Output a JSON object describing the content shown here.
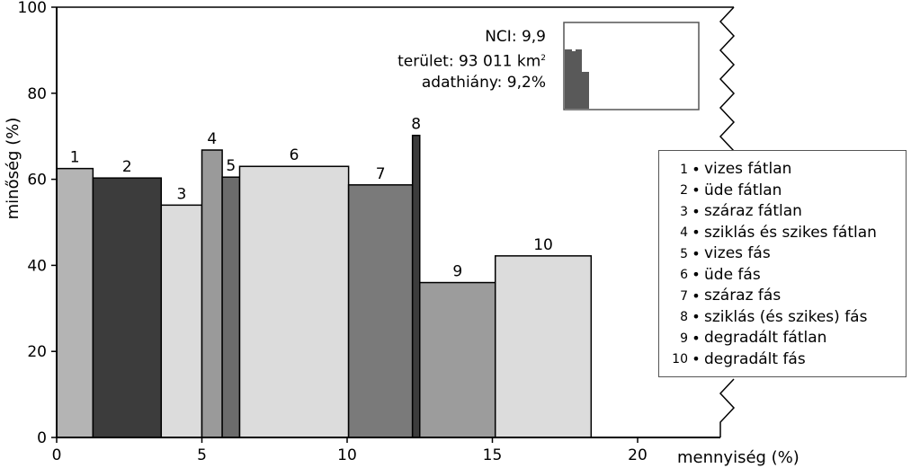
{
  "chart_data": {
    "type": "bar",
    "subtype": "variable-width bars (Marimekko)",
    "xlabel": "mennyiség (%)",
    "ylabel": "minőség (%)",
    "xlim": [
      0,
      20
    ],
    "ylim": [
      0,
      100
    ],
    "xticks": [
      0,
      5,
      10,
      15,
      20
    ],
    "yticks": [
      0,
      20,
      40,
      60,
      80,
      100
    ],
    "bars": [
      {
        "id": "1",
        "x_start": 0.0,
        "x_end": 1.25,
        "value": 62.5,
        "color": "#b4b4b4"
      },
      {
        "id": "2",
        "x_start": 1.25,
        "x_end": 3.6,
        "value": 60.3,
        "color": "#3c3c3c"
      },
      {
        "id": "3",
        "x_start": 3.6,
        "x_end": 5.0,
        "value": 54.0,
        "color": "#dcdcdc"
      },
      {
        "id": "4",
        "x_start": 5.0,
        "x_end": 5.7,
        "value": 66.8,
        "color": "#9a9a9a"
      },
      {
        "id": "5",
        "x_start": 5.7,
        "x_end": 6.3,
        "value": 60.5,
        "color": "#6c6c6c"
      },
      {
        "id": "6",
        "x_start": 6.3,
        "x_end": 10.05,
        "value": 63.0,
        "color": "#dcdcdc"
      },
      {
        "id": "7",
        "x_start": 10.05,
        "x_end": 12.25,
        "value": 58.7,
        "color": "#7a7a7a"
      },
      {
        "id": "8",
        "x_start": 12.25,
        "x_end": 12.5,
        "value": 70.2,
        "color": "#3c3c3c"
      },
      {
        "id": "9",
        "x_start": 12.5,
        "x_end": 15.1,
        "value": 36.0,
        "color": "#9c9c9c"
      },
      {
        "id": "10",
        "x_start": 15.1,
        "x_end": 18.4,
        "value": 42.2,
        "color": "#dcdcdc"
      }
    ],
    "legend": [
      {
        "num": "1",
        "label": "vizes fátlan"
      },
      {
        "num": "2",
        "label": "üde fátlan"
      },
      {
        "num": "3",
        "label": "száraz fátlan"
      },
      {
        "num": "4",
        "label": "sziklás és szikes fátlan"
      },
      {
        "num": "5",
        "label": "vizes fás"
      },
      {
        "num": "6",
        "label": "üde fás"
      },
      {
        "num": "7",
        "label": "száraz fás"
      },
      {
        "num": "8",
        "label": "sziklás (és szikes) fás"
      },
      {
        "num": "9",
        "label": "degradált fátlan"
      },
      {
        "num": "10",
        "label": "degradált fás"
      }
    ],
    "legend_placement": "right",
    "info": {
      "nci": "NCI: 9,9",
      "terulet": "terület: 93 011 km",
      "terulet_sup": "2",
      "adathiany": "adathiány: 9,2%"
    }
  }
}
